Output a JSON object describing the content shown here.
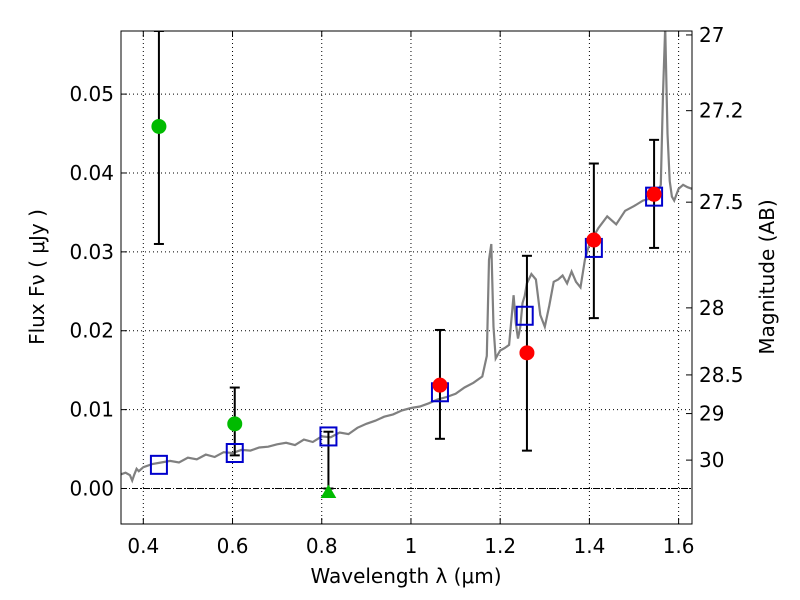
{
  "chart_data": {
    "type": "scatter",
    "xlabel": "Wavelength  λ (μm)",
    "ylabel": "Flux  Fν  ( μJy )",
    "ylabel_right": "Magnitude (AB)",
    "xlim": [
      0.35,
      1.63
    ],
    "ylim": [
      -0.0045,
      0.058
    ],
    "grid": true,
    "x_ticks": [
      0.4,
      0.6,
      0.8,
      1.0,
      1.2,
      1.4,
      1.6
    ],
    "x_tick_labels": [
      "0.4",
      "0.6",
      "0.8",
      "1",
      "1.2",
      "1.4",
      "1.6"
    ],
    "y_ticks": [
      0.0,
      0.01,
      0.02,
      0.03,
      0.04,
      0.05
    ],
    "y_tick_labels": [
      "0.00",
      "0.01",
      "0.02",
      "0.03",
      "0.04",
      "0.05"
    ],
    "right_ticks": [
      {
        "mag": "27",
        "flux": 0.0575
      },
      {
        "mag": "27.2",
        "flux": 0.0479
      },
      {
        "mag": "27.5",
        "flux": 0.0363
      },
      {
        "mag": "28",
        "flux": 0.0229
      },
      {
        "mag": "28.5",
        "flux": 0.0144
      },
      {
        "mag": "29",
        "flux": 0.0095
      },
      {
        "mag": "30",
        "flux": 0.0036
      }
    ],
    "colors": {
      "model": "#808080",
      "green": "#00bb00",
      "red": "#ff0000",
      "square": "#0000cc",
      "errorbar": "#000000"
    },
    "model_spectrum": {
      "x": [
        0.35,
        0.36,
        0.37,
        0.375,
        0.38,
        0.385,
        0.39,
        0.4,
        0.42,
        0.44,
        0.46,
        0.48,
        0.5,
        0.52,
        0.54,
        0.56,
        0.58,
        0.6,
        0.62,
        0.64,
        0.66,
        0.68,
        0.7,
        0.72,
        0.74,
        0.76,
        0.78,
        0.8,
        0.82,
        0.84,
        0.86,
        0.88,
        0.9,
        0.92,
        0.94,
        0.96,
        0.98,
        1.0,
        1.02,
        1.04,
        1.06,
        1.08,
        1.1,
        1.12,
        1.14,
        1.16,
        1.17,
        1.175,
        1.18,
        1.185,
        1.19,
        1.2,
        1.21,
        1.22,
        1.23,
        1.235,
        1.24,
        1.245,
        1.25,
        1.255,
        1.26,
        1.27,
        1.28,
        1.29,
        1.3,
        1.31,
        1.32,
        1.33,
        1.34,
        1.35,
        1.36,
        1.37,
        1.38,
        1.39,
        1.4,
        1.42,
        1.44,
        1.46,
        1.48,
        1.5,
        1.52,
        1.54,
        1.55,
        1.56,
        1.565,
        1.57,
        1.575,
        1.58,
        1.585,
        1.59,
        1.6,
        1.61,
        1.62,
        1.63
      ],
      "y": [
        0.0018,
        0.002,
        0.0017,
        0.001,
        0.0018,
        0.0025,
        0.0022,
        0.0027,
        0.0031,
        0.0033,
        0.0035,
        0.0033,
        0.0039,
        0.0037,
        0.0043,
        0.004,
        0.0046,
        0.0045,
        0.0049,
        0.0048,
        0.0052,
        0.0053,
        0.0056,
        0.0058,
        0.0055,
        0.0062,
        0.0059,
        0.0066,
        0.0065,
        0.0071,
        0.0069,
        0.0077,
        0.0082,
        0.0086,
        0.0091,
        0.0094,
        0.0099,
        0.0102,
        0.0104,
        0.0108,
        0.0113,
        0.0116,
        0.012,
        0.0128,
        0.0134,
        0.0142,
        0.0168,
        0.029,
        0.031,
        0.0205,
        0.0165,
        0.0175,
        0.0178,
        0.0182,
        0.0245,
        0.021,
        0.019,
        0.0205,
        0.0235,
        0.0244,
        0.026,
        0.0272,
        0.0265,
        0.022,
        0.0205,
        0.0232,
        0.0262,
        0.0265,
        0.027,
        0.026,
        0.0275,
        0.0262,
        0.0255,
        0.029,
        0.031,
        0.033,
        0.0345,
        0.0335,
        0.0352,
        0.0358,
        0.0365,
        0.0368,
        0.037,
        0.0385,
        0.05,
        0.0585,
        0.045,
        0.039,
        0.037,
        0.0365,
        0.038,
        0.0385,
        0.0382,
        0.038
      ]
    },
    "error_bars": [
      {
        "x": 0.435,
        "low": 0.031,
        "high": 0.058
      },
      {
        "x": 0.605,
        "low": 0.0042,
        "high": 0.0128
      },
      {
        "x": 0.815,
        "low": 0.0,
        "high": 0.0072
      },
      {
        "x": 1.065,
        "low": 0.0063,
        "high": 0.0201
      },
      {
        "x": 1.26,
        "low": 0.0048,
        "high": 0.0295
      },
      {
        "x": 1.41,
        "low": 0.0216,
        "high": 0.0412
      },
      {
        "x": 1.545,
        "low": 0.0305,
        "high": 0.0442
      }
    ],
    "model_squares": [
      {
        "x": 0.435,
        "y": 0.003
      },
      {
        "x": 0.605,
        "y": 0.0045
      },
      {
        "x": 0.815,
        "y": 0.0066
      },
      {
        "x": 1.065,
        "y": 0.0122
      },
      {
        "x": 1.255,
        "y": 0.0219
      },
      {
        "x": 1.41,
        "y": 0.0305
      },
      {
        "x": 1.545,
        "y": 0.037
      }
    ],
    "green_points": [
      {
        "x": 0.435,
        "y": 0.0459,
        "shape": "circle"
      },
      {
        "x": 0.605,
        "y": 0.0082,
        "shape": "circle"
      },
      {
        "x": 0.815,
        "y": -0.0005,
        "shape": "triangle"
      }
    ],
    "red_points": [
      {
        "x": 1.065,
        "y": 0.0131
      },
      {
        "x": 1.26,
        "y": 0.0172
      },
      {
        "x": 1.41,
        "y": 0.0315
      },
      {
        "x": 1.545,
        "y": 0.0373
      }
    ]
  }
}
